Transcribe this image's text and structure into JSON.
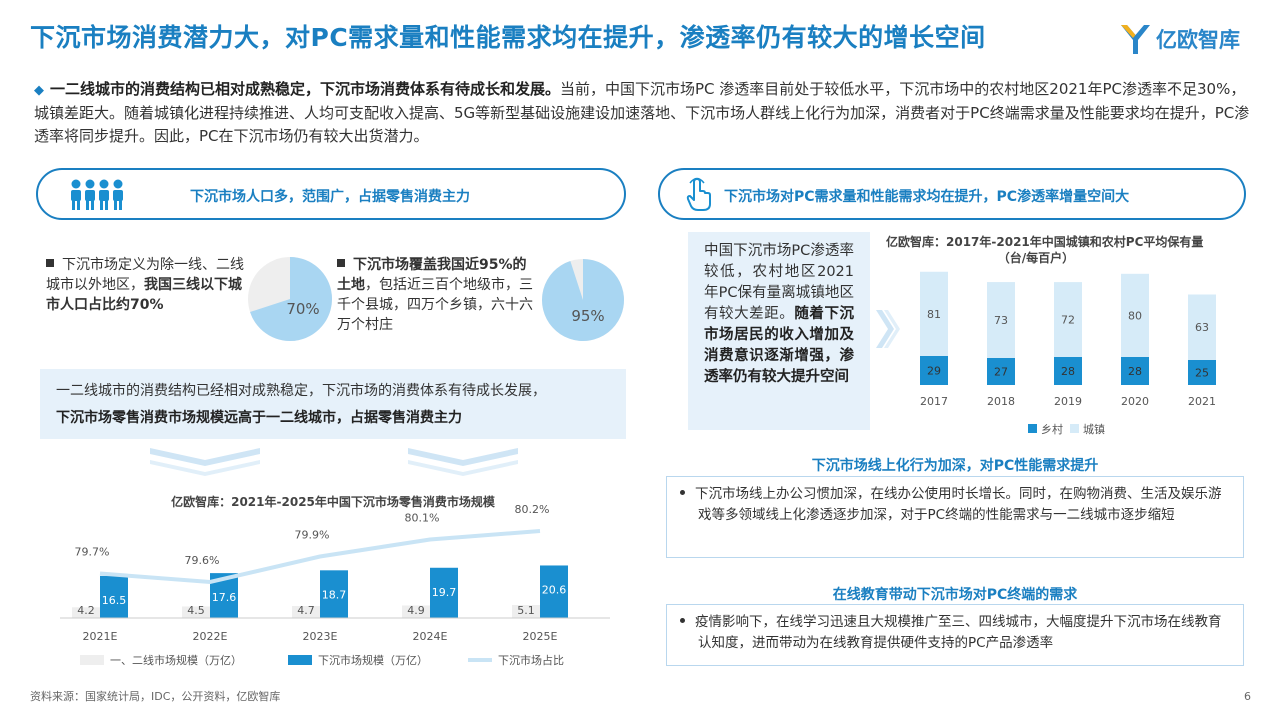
{
  "title": "下沉市场消费潜力大，对PC需求量和性能需求均在提升，渗透率仍有较大的增长空间",
  "brand": "亿欧智库",
  "intro": {
    "bold": "一二线城市的消费结构已相对成熟稳定，下沉市场消费体系有待成长和发展。",
    "text": "当前，中国下沉市场PC 渗透率目前处于较低水平，下沉市场中的农村地区2021年PC渗透率不足30%，城镇差距大。随着城镇化进程持续推进、人均可支配收入提高、5G等新型基础设施建设加速落地、下沉市场人群线上化行为加深，消费者对于PC终端需求量及性能要求均在提升，PC渗透率将同步提升。因此，PC在下沉市场仍有较大出货潜力。"
  },
  "left_panel": {
    "header": "下沉市场人口多，范围广，占据零售消费主力",
    "bullet1": {
      "text": "下沉市场定义为除一线、二线城市以外地区，",
      "bold": "我国三线以下城市人口占比约70%"
    },
    "pie1_label": "70%",
    "pie1_value": 70,
    "bullet2": {
      "bold": "下沉市场覆盖我国近95%的土地",
      "text": "，包括近三百个地级市，三千个县城，四万个乡镇，六十六万个村庄"
    },
    "pie2_label": "95%",
    "pie2_value": 95,
    "band_line1": "一二线城市的消费结构已经相对成熟稳定，下沉市场的消费体系有待成长发展，",
    "band_line2": "下沉市场零售消费市场规模远高于一二线城市，占据零售消费主力"
  },
  "right_panel": {
    "header": "下沉市场对PC需求量和性能需求均在提升，PC渗透率增量空间大",
    "callout": {
      "text": "中国下沉市场PC渗透率较低，农村地区2021年PC保有量离城镇地区有较大差距。",
      "bold": "随着下沉市场居民的收入增加及消费意识逐渐增强，渗透率仍有较大提升空间"
    },
    "sec1": {
      "head": "下沉市场线上化行为加深，对PC性能需求提升",
      "text": "下沉市场线上办公习惯加深，在线办公使用时长增长。同时，在购物消费、生活及娱乐游戏等多领域线上化渗透逐步加深，对于PC终端的性能需求与一二线城市逐步缩短"
    },
    "sec2": {
      "head": "在线教育带动下沉市场对PC终端的需求",
      "text": "疫情影响下，在线学习迅速且大规模推广至三、四线城市，大幅度提升下沉市场在线教育认知度，进而带动为在线教育提供硬件支持的PC产品渗透率"
    }
  },
  "chart_data": [
    {
      "type": "bar",
      "title": "亿欧智库：2021年-2025年中国下沉市场零售消费市场规模",
      "categories": [
        "2021E",
        "2022E",
        "2023E",
        "2024E",
        "2025E"
      ],
      "series": [
        {
          "name": "一、二线市场规模（万亿）",
          "values": [
            4.2,
            4.5,
            4.7,
            4.9,
            5.1
          ],
          "color": "#eeeeee"
        },
        {
          "name": "下沉市场规模（万亿）",
          "values": [
            16.5,
            17.6,
            18.7,
            19.7,
            20.6
          ],
          "color": "#1a8fd0"
        },
        {
          "name": "下沉市场占比",
          "type": "line",
          "values": [
            79.7,
            79.6,
            79.9,
            80.1,
            80.2
          ],
          "labels": [
            "79.7%",
            "79.6%",
            "79.9%",
            "80.1%",
            "80.2%"
          ],
          "color": "#c9e4f5"
        }
      ]
    },
    {
      "type": "bar",
      "title": "亿欧智库：2017年-2021年中国城镇和农村PC平均保有量",
      "subtitle": "（台/每百户）",
      "categories": [
        "2017",
        "2018",
        "2019",
        "2020",
        "2021"
      ],
      "series": [
        {
          "name": "乡村",
          "values": [
            29,
            27,
            28,
            28,
            25
          ],
          "color": "#1a8fd0"
        },
        {
          "name": "城镇",
          "values": [
            81,
            73,
            72,
            80,
            63
          ],
          "color": "#d6ebf8"
        }
      ]
    }
  ],
  "footer": "资料来源：国家统计局，IDC，公开资料，亿欧智库",
  "page_number": "6"
}
